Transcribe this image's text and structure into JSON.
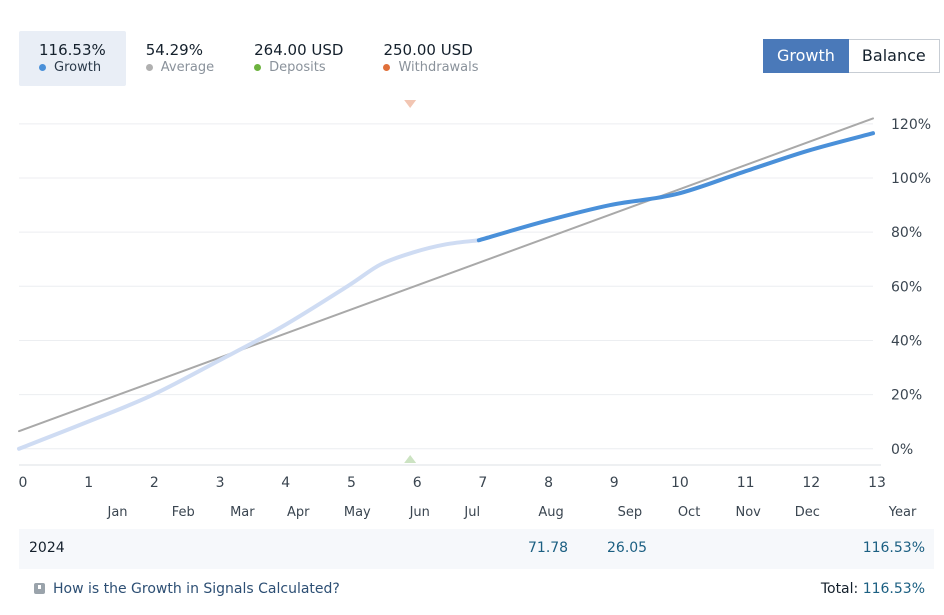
{
  "stats": [
    {
      "value": "116.53%",
      "label": "Growth",
      "color": "#4a90d9"
    },
    {
      "value": "54.29%",
      "label": "Average",
      "color": "#b0b0b0"
    },
    {
      "value": "264.00 USD",
      "label": "Deposits",
      "color": "#6db33f"
    },
    {
      "value": "250.00 USD",
      "label": "Withdrawals",
      "color": "#e0703a"
    }
  ],
  "toggle": {
    "growth_label": "Growth",
    "balance_label": "Balance"
  },
  "chart_data": {
    "type": "line",
    "xlim": [
      0,
      13
    ],
    "ylim": [
      -6,
      124
    ],
    "y_ticks": [
      120,
      100,
      80,
      60,
      40,
      20,
      0
    ],
    "y_tick_labels": [
      "120%",
      "100%",
      "80%",
      "60%",
      "40%",
      "20%",
      "0%"
    ],
    "x_ticks": [
      0,
      1,
      2,
      3,
      4,
      5,
      6,
      7,
      8,
      9,
      10,
      11,
      12,
      13
    ],
    "x_tick_labels": [
      "0",
      "1",
      "2",
      "3",
      "4",
      "5",
      "6",
      "7",
      "8",
      "9",
      "10",
      "11",
      "12",
      "13"
    ],
    "month_labels": [
      {
        "label": "Jan",
        "x": 1.5
      },
      {
        "label": "Feb",
        "x": 2.5
      },
      {
        "label": "Mar",
        "x": 3.4
      },
      {
        "label": "Apr",
        "x": 4.25
      },
      {
        "label": "May",
        "x": 5.15
      },
      {
        "label": "Jun",
        "x": 6.1
      },
      {
        "label": "Jul",
        "x": 6.9
      },
      {
        "label": "Aug",
        "x": 8.1
      },
      {
        "label": "Sep",
        "x": 9.3
      },
      {
        "label": "Oct",
        "x": 10.2
      },
      {
        "label": "Nov",
        "x": 11.1
      },
      {
        "label": "Dec",
        "x": 12.0
      },
      {
        "label": "Year",
        "x": 13.45
      }
    ],
    "series": [
      {
        "name": "Average",
        "color": "#a9a9a9",
        "x": [
          0,
          13
        ],
        "y": [
          6.5,
          122
        ]
      },
      {
        "name": "Growth (history)",
        "color": "#cfdcf3",
        "x": [
          0,
          1,
          2,
          3,
          4,
          5,
          5.5,
          6,
          6.5,
          7
        ],
        "y": [
          0,
          9.5,
          19.5,
          32,
          45,
          60,
          68,
          72.5,
          75.5,
          77
        ]
      },
      {
        "name": "Growth",
        "color": "#4a90d9",
        "x": [
          7,
          8,
          9,
          10,
          11,
          12,
          13
        ],
        "y": [
          77,
          84,
          90,
          94,
          102,
          110,
          116.53
        ]
      }
    ],
    "markers": [
      {
        "type": "withdrawal",
        "x": 6,
        "color": "#f2c6b3"
      },
      {
        "type": "deposit",
        "x": 6,
        "color": "#cce3c2"
      }
    ]
  },
  "year_row": {
    "year": "2024",
    "values": [
      {
        "month": "Aug",
        "value": "71.78"
      },
      {
        "month": "Sep",
        "value": "26.05"
      }
    ],
    "total": "116.53%"
  },
  "footer": {
    "help_link": "How is the Growth in Signals Calculated?",
    "total_label": "Total:",
    "total_value": "116.53%"
  }
}
